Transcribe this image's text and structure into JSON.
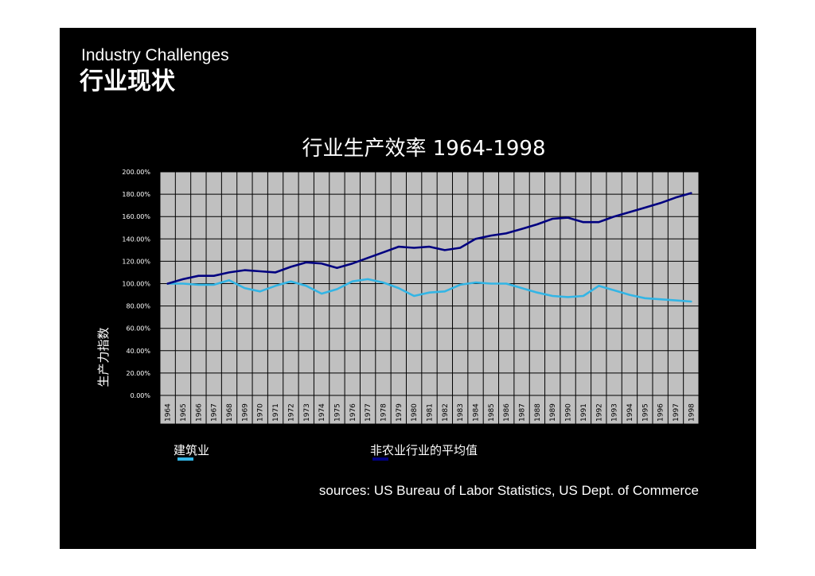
{
  "slide": {
    "subtitle": "Industry Challenges",
    "title": "行业现状",
    "sources": "sources: US Bureau of Labor Statistics, US Dept. of Commerce"
  },
  "colors": {
    "background": "#000000",
    "plot_area": "#c0c0c0",
    "grid": "#000000",
    "construction": "#33b5e5",
    "nonfarm": "#000080"
  },
  "chart_data": {
    "type": "line",
    "title": "行业生产效率 1964-1998",
    "xlabel": "",
    "ylabel": "生产力指数",
    "ylim": [
      0,
      200
    ],
    "yticks": [
      "0.00%",
      "20.00%",
      "40.00%",
      "60.00%",
      "80.00%",
      "100.00%",
      "120.00%",
      "140.00%",
      "160.00%",
      "180.00%",
      "200.00%"
    ],
    "categories": [
      "1964",
      "1965",
      "1966",
      "1967",
      "1968",
      "1969",
      "1970",
      "1971",
      "1972",
      "1973",
      "1974",
      "1975",
      "1976",
      "1977",
      "1978",
      "1979",
      "1980",
      "1981",
      "1982",
      "1983",
      "1984",
      "1985",
      "1986",
      "1987",
      "1988",
      "1989",
      "1990",
      "1991",
      "1992",
      "1993",
      "1994",
      "1995",
      "1996",
      "1997",
      "1998"
    ],
    "series": [
      {
        "name": "建筑业",
        "color": "#33b5e5",
        "values": [
          100,
          100,
          99,
          99,
          103,
          96,
          93,
          98,
          102,
          98,
          91,
          95,
          102,
          104,
          101,
          96,
          89,
          92,
          93,
          99,
          101,
          100,
          100,
          96,
          92,
          89,
          88,
          89,
          98,
          94,
          90,
          87,
          86,
          85,
          84
        ]
      },
      {
        "name": "非农业行业的平均值",
        "color": "#000080",
        "values": [
          100,
          104,
          107,
          107,
          110,
          112,
          111,
          110,
          115,
          119,
          118,
          114,
          118,
          123,
          128,
          133,
          132,
          133,
          130,
          132,
          140,
          143,
          145,
          149,
          153,
          158,
          159,
          155,
          155,
          160,
          164,
          168,
          172,
          177,
          181
        ]
      }
    ],
    "legend": "bottom"
  }
}
